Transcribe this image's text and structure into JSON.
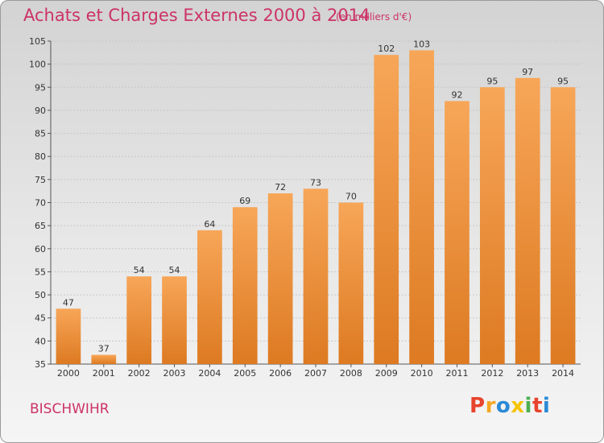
{
  "header": {
    "title": "Achats et Charges Externes 2000 à 2014",
    "subtitle": "(en milliers d'€)"
  },
  "footer": {
    "commune": "BISCHWIHR",
    "logo_text": "Proxiti",
    "logo_colors": [
      "#e8432d",
      "#f5a623",
      "#2b8ad6",
      "#f5c400",
      "#4caf50",
      "#e8432d",
      "#2b8ad6"
    ]
  },
  "colors": {
    "bar_light": "#f7a658",
    "bar_dark": "#dd7a22",
    "accent": "#cc3366"
  },
  "chart_data": {
    "type": "bar",
    "title": "Achats et Charges Externes 2000 à 2014",
    "xlabel": "",
    "ylabel": "",
    "categories": [
      "2000",
      "2001",
      "2002",
      "2003",
      "2004",
      "2005",
      "2006",
      "2007",
      "2008",
      "2009",
      "2010",
      "2011",
      "2012",
      "2013",
      "2014"
    ],
    "values": [
      47,
      37,
      54,
      54,
      64,
      69,
      72,
      73,
      70,
      102,
      103,
      92,
      95,
      97,
      95
    ],
    "ylim": [
      35,
      105
    ],
    "yticks": [
      35,
      40,
      45,
      50,
      55,
      60,
      65,
      70,
      75,
      80,
      85,
      90,
      95,
      100,
      105
    ],
    "grid": true,
    "legend": "none"
  }
}
